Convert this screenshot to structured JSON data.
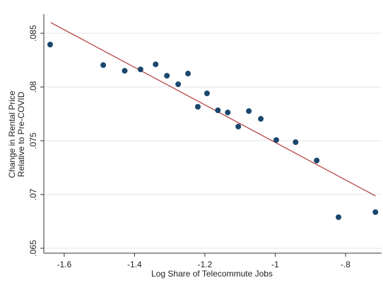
{
  "chart_data": {
    "type": "scatter",
    "xlabel": "Log Share of Telecommute Jobs",
    "ylabel_lines": [
      "Change in Rental Price",
      "Relative to Pre-COVID"
    ],
    "series": [
      {
        "color": "#1a476f",
        "x": [
          -1.64,
          -1.489,
          -1.428,
          -1.383,
          -1.34,
          -1.308,
          -1.276,
          -1.248,
          -1.22,
          -1.194,
          -1.163,
          -1.135,
          -1.105,
          -1.075,
          -1.041,
          -0.997,
          -0.942,
          -0.882,
          -0.82,
          -0.715
        ],
        "values": [
          0.08395,
          0.08204,
          0.08151,
          0.08164,
          0.08211,
          0.08105,
          0.08026,
          0.08125,
          0.07816,
          0.07941,
          0.07783,
          0.07763,
          0.07632,
          0.07776,
          0.07704,
          0.07507,
          0.07487,
          0.07316,
          0.06789,
          0.06836
        ]
      }
    ],
    "fit_line": {
      "color": "#b5494a",
      "x": [
        -1.638,
        -0.715
      ],
      "values": [
        0.08599,
        0.06987
      ]
    },
    "xlim": [
      -1.658,
      -0.6975
    ],
    "ylim": [
      0.06454,
      0.08678
    ],
    "xticks": [
      -1.6,
      -1.4,
      -1.2,
      -1,
      {
        "value": -0.8,
        "label": "-.8"
      }
    ],
    "yticks": [
      {
        "value": 0.065,
        "label": ".065"
      },
      {
        "value": 0.07,
        "label": ".07"
      },
      {
        "value": 0.075,
        "label": ".075"
      },
      {
        "value": 0.08,
        "label": ".08"
      },
      {
        "value": 0.085,
        "label": ".085"
      }
    ],
    "grid": true
  }
}
